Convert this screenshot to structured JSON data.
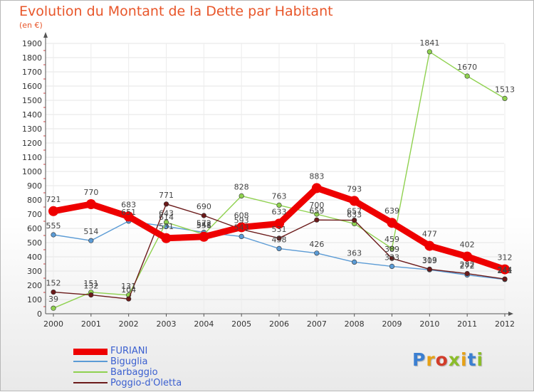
{
  "title": "Evolution du Montant de la Dette par Habitant",
  "subtitle": "(en €)",
  "logo": {
    "text": "Proxiti",
    "colors": [
      "#3b7fd1",
      "#e6a117",
      "#d23c2a",
      "#8bbd2a",
      "#e6a117",
      "#3b7fd1",
      "#8bbd2a"
    ]
  },
  "chart_data": {
    "type": "line",
    "title": "Evolution du Montant de la Dette par Habitant",
    "ylabel": "(en €)",
    "xlabel": "",
    "ylim": [
      0,
      1900
    ],
    "yticks": [
      0,
      100,
      200,
      300,
      400,
      500,
      600,
      700,
      800,
      900,
      1000,
      1100,
      1200,
      1300,
      1400,
      1500,
      1600,
      1700,
      1800,
      1900
    ],
    "x": [
      "2000",
      "2001",
      "2002",
      "2003",
      "2004",
      "2005",
      "2006",
      "2007",
      "2008",
      "2009",
      "2010",
      "2011",
      "2012"
    ],
    "grid": true,
    "legend_position": "bottom-left",
    "series": [
      {
        "name": "FURIANI",
        "color": "#ee0000",
        "values": [
          721,
          770,
          683,
          531,
          541,
          608,
          633,
          883,
          793,
          639,
          477,
          402,
          312
        ]
      },
      {
        "name": "Biguglia",
        "color": "#5b9bd5",
        "values": [
          555,
          514,
          651,
          614,
          572,
          543,
          458,
          426,
          363,
          333,
          309,
          272,
          241
        ]
      },
      {
        "name": "Barbaggio",
        "color": "#8fd14f",
        "values": [
          39,
          151,
          131,
          643,
          558,
          828,
          763,
          700,
          633,
          459,
          1841,
          1670,
          1513
        ]
      },
      {
        "name": "Poggio-d'Oletta",
        "color": "#6b1a1a",
        "values": [
          152,
          132,
          104,
          771,
          690,
          593,
          531,
          659,
          657,
          389,
          313,
          282,
          244
        ]
      }
    ]
  }
}
